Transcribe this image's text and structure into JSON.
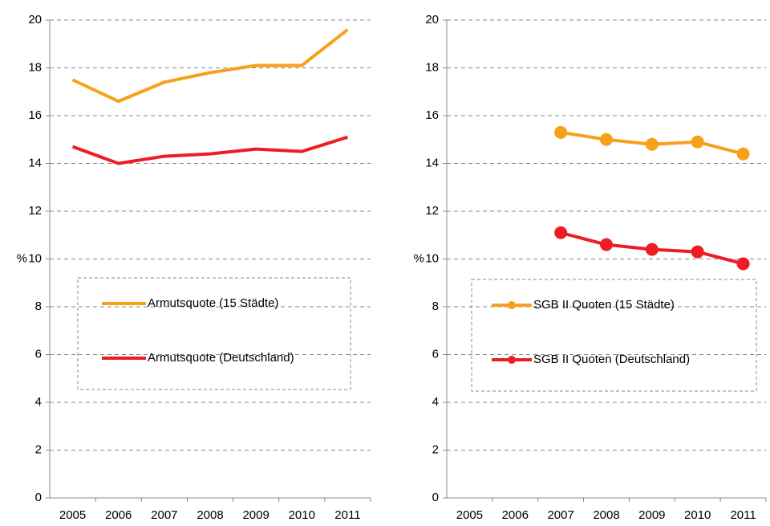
{
  "chart_data": [
    {
      "type": "line",
      "ylabel": "%",
      "categories": [
        "2005",
        "2006",
        "2007",
        "2008",
        "2009",
        "2010",
        "2011"
      ],
      "ylim": [
        0,
        20
      ],
      "yticks": [
        0,
        2,
        4,
        6,
        8,
        10,
        12,
        14,
        16,
        18,
        20
      ],
      "grid": true,
      "markers": false,
      "series": [
        {
          "name": "Armutsquote (15 Städte)",
          "color": "#f7a11a",
          "values": [
            17.5,
            16.6,
            17.4,
            17.8,
            18.1,
            18.1,
            19.6
          ]
        },
        {
          "name": "Armutsquote (Deutschland)",
          "color": "#ee1c25",
          "values": [
            14.7,
            14.0,
            14.3,
            14.4,
            14.6,
            14.5,
            15.1
          ]
        }
      ]
    },
    {
      "type": "line",
      "ylabel": "%",
      "categories": [
        "2005",
        "2006",
        "2007",
        "2008",
        "2009",
        "2010",
        "2011"
      ],
      "ylim": [
        0,
        20
      ],
      "yticks": [
        0,
        2,
        4,
        6,
        8,
        10,
        12,
        14,
        16,
        18,
        20
      ],
      "grid": true,
      "markers": true,
      "series": [
        {
          "name": "SGB II Quoten (15 Städte)",
          "color": "#f7a11a",
          "values": [
            null,
            null,
            15.3,
            15.0,
            14.8,
            14.9,
            14.4
          ]
        },
        {
          "name": "SGB II Quoten (Deutschland)",
          "color": "#ee1c25",
          "values": [
            null,
            null,
            11.1,
            10.6,
            10.4,
            10.3,
            9.8
          ]
        }
      ]
    }
  ]
}
